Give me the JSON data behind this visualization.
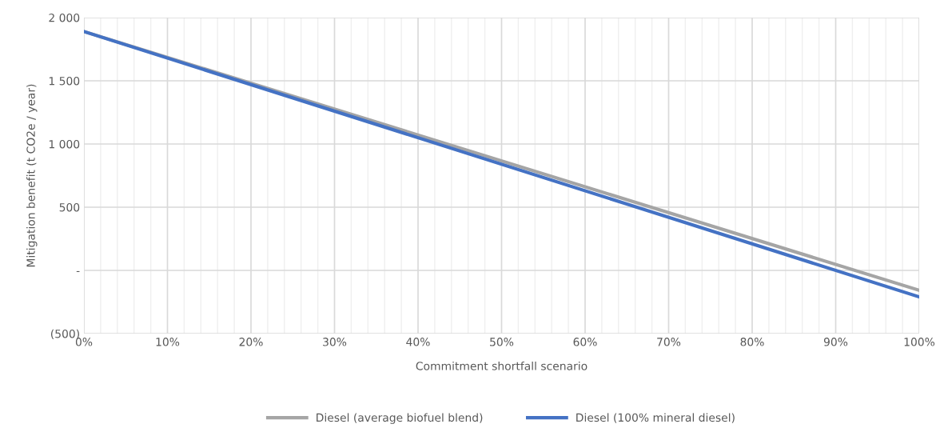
{
  "chart_data": {
    "type": "line",
    "xlabel": "Commitment shortfall scenario",
    "ylabel": "Mitigation benefit (t CO2e / year)",
    "x": [
      0,
      100
    ],
    "series": [
      {
        "name": "Diesel (average biofuel blend)",
        "color": "#a5a5a5",
        "values": [
          1890,
          -157
        ]
      },
      {
        "name": "Diesel (100% mineral diesel)",
        "color": "#4472c4",
        "values": [
          1890,
          -210
        ]
      }
    ],
    "xlim": [
      0,
      100
    ],
    "xticks": [
      {
        "value": 0,
        "label": "0%"
      },
      {
        "value": 10,
        "label": "10%"
      },
      {
        "value": 20,
        "label": "20%"
      },
      {
        "value": 30,
        "label": "30%"
      },
      {
        "value": 40,
        "label": "40%"
      },
      {
        "value": 50,
        "label": "50%"
      },
      {
        "value": 60,
        "label": "60%"
      },
      {
        "value": 70,
        "label": "70%"
      },
      {
        "value": 80,
        "label": "80%"
      },
      {
        "value": 90,
        "label": "90%"
      },
      {
        "value": 100,
        "label": "100%"
      }
    ],
    "ylim": [
      -500,
      2000
    ],
    "yticks": [
      {
        "value": -500,
        "label": "(500)"
      },
      {
        "value": 0,
        "label": "-"
      },
      {
        "value": 500,
        "label": "500"
      },
      {
        "value": 1000,
        "label": "1 000"
      },
      {
        "value": 1500,
        "label": "1 500"
      },
      {
        "value": 2000,
        "label": "2 000"
      }
    ],
    "grid": true,
    "legend": "bottom",
    "marker": "none",
    "line_style": "solid"
  }
}
